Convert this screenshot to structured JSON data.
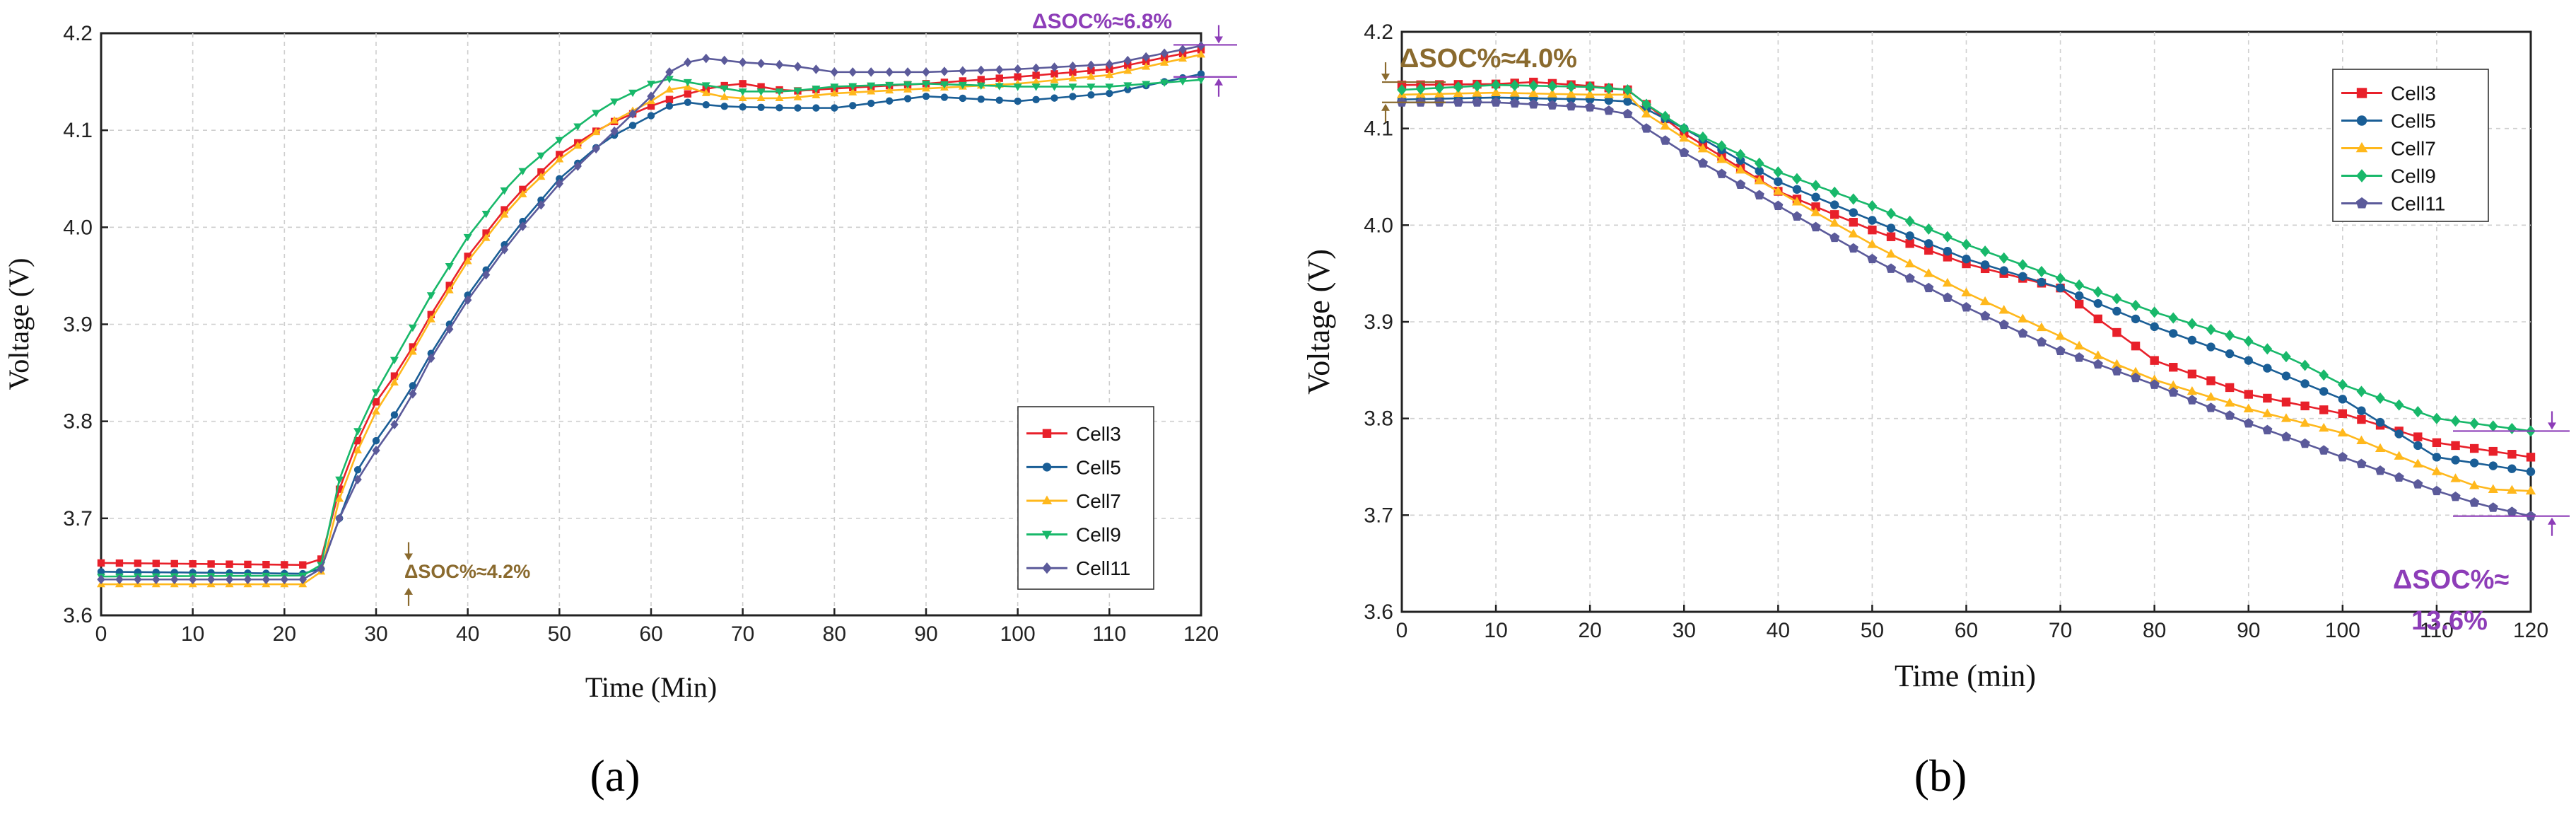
{
  "chart_data": [
    {
      "type": "line",
      "panel_label": "(a)",
      "xlabel": "Time  (Min)",
      "ylabel": "Voltage  (V)",
      "xlim": [
        0,
        120
      ],
      "ylim": [
        3.6,
        4.2
      ],
      "xticks": [
        0,
        10,
        20,
        30,
        40,
        50,
        60,
        70,
        80,
        90,
        100,
        110,
        120
      ],
      "yticks": [
        3.6,
        3.7,
        3.8,
        3.9,
        4.0,
        4.1,
        4.2
      ],
      "grid": true,
      "legend_position": "right-bottom",
      "annotations": [
        {
          "text": "ΔSOC%≈4.2%",
          "color": "#8a6a2e",
          "x": 33,
          "y_low": 3.63,
          "y_high": 3.655
        },
        {
          "text": "ΔSOC%≈6.8%",
          "color": "#8d3db8",
          "x": 120,
          "y_low": 4.155,
          "y_high": 4.188
        }
      ],
      "series": [
        {
          "name": "Cell3",
          "color": "#e8202a",
          "marker": "square",
          "points": [
            [
              0,
              3.654
            ],
            [
              22,
              3.652
            ],
            [
              24,
              3.658
            ],
            [
              26,
              3.73
            ],
            [
              28,
              3.78
            ],
            [
              30,
              3.82
            ],
            [
              33,
              3.86
            ],
            [
              36,
              3.91
            ],
            [
              40,
              3.97
            ],
            [
              45,
              4.03
            ],
            [
              50,
              4.075
            ],
            [
              55,
              4.105
            ],
            [
              60,
              4.125
            ],
            [
              63,
              4.135
            ],
            [
              67,
              4.145
            ],
            [
              70,
              4.148
            ],
            [
              75,
              4.14
            ],
            [
              80,
              4.143
            ],
            [
              90,
              4.148
            ],
            [
              100,
              4.155
            ],
            [
              110,
              4.163
            ],
            [
              120,
              4.183
            ]
          ]
        },
        {
          "name": "Cell5",
          "color": "#1a5e96",
          "marker": "circle",
          "points": [
            [
              0,
              3.645
            ],
            [
              22,
              3.643
            ],
            [
              24,
              3.648
            ],
            [
              26,
              3.7
            ],
            [
              28,
              3.75
            ],
            [
              30,
              3.78
            ],
            [
              33,
              3.82
            ],
            [
              36,
              3.87
            ],
            [
              40,
              3.93
            ],
            [
              45,
              3.995
            ],
            [
              50,
              4.05
            ],
            [
              55,
              4.09
            ],
            [
              60,
              4.115
            ],
            [
              63,
              4.13
            ],
            [
              67,
              4.125
            ],
            [
              70,
              4.124
            ],
            [
              75,
              4.123
            ],
            [
              80,
              4.123
            ],
            [
              90,
              4.135
            ],
            [
              100,
              4.13
            ],
            [
              110,
              4.138
            ],
            [
              120,
              4.158
            ]
          ]
        },
        {
          "name": "Cell7",
          "color": "#ffb81c",
          "marker": "triangle-up",
          "points": [
            [
              0,
              3.632
            ],
            [
              22,
              3.632
            ],
            [
              24,
              3.645
            ],
            [
              26,
              3.72
            ],
            [
              28,
              3.77
            ],
            [
              30,
              3.81
            ],
            [
              33,
              3.855
            ],
            [
              36,
              3.905
            ],
            [
              40,
              3.965
            ],
            [
              45,
              4.025
            ],
            [
              50,
              4.07
            ],
            [
              55,
              4.105
            ],
            [
              60,
              4.13
            ],
            [
              63,
              4.148
            ],
            [
              67,
              4.135
            ],
            [
              70,
              4.133
            ],
            [
              75,
              4.133
            ],
            [
              80,
              4.138
            ],
            [
              90,
              4.143
            ],
            [
              100,
              4.148
            ],
            [
              110,
              4.157
            ],
            [
              120,
              4.178
            ]
          ]
        },
        {
          "name": "Cell9",
          "color": "#18b86a",
          "marker": "triangle-down",
          "points": [
            [
              0,
              3.64
            ],
            [
              22,
              3.641
            ],
            [
              24,
              3.652
            ],
            [
              26,
              3.74
            ],
            [
              28,
              3.79
            ],
            [
              30,
              3.83
            ],
            [
              33,
              3.88
            ],
            [
              36,
              3.93
            ],
            [
              40,
              3.99
            ],
            [
              45,
              4.05
            ],
            [
              50,
              4.09
            ],
            [
              55,
              4.125
            ],
            [
              60,
              4.148
            ],
            [
              62,
              4.153
            ],
            [
              65,
              4.148
            ],
            [
              70,
              4.14
            ],
            [
              75,
              4.14
            ],
            [
              80,
              4.145
            ],
            [
              90,
              4.148
            ],
            [
              100,
              4.145
            ],
            [
              110,
              4.145
            ],
            [
              120,
              4.152
            ]
          ]
        },
        {
          "name": "Cell11",
          "color": "#5b5a9a",
          "marker": "diamond",
          "points": [
            [
              0,
              3.637
            ],
            [
              22,
              3.637
            ],
            [
              24,
              3.648
            ],
            [
              26,
              3.7
            ],
            [
              28,
              3.74
            ],
            [
              30,
              3.77
            ],
            [
              33,
              3.81
            ],
            [
              36,
              3.865
            ],
            [
              40,
              3.925
            ],
            [
              45,
              3.99
            ],
            [
              50,
              4.045
            ],
            [
              55,
              4.09
            ],
            [
              60,
              4.135
            ],
            [
              62,
              4.16
            ],
            [
              65,
              4.175
            ],
            [
              70,
              4.17
            ],
            [
              75,
              4.167
            ],
            [
              80,
              4.16
            ],
            [
              90,
              4.16
            ],
            [
              100,
              4.163
            ],
            [
              110,
              4.168
            ],
            [
              120,
              4.187
            ]
          ]
        }
      ]
    },
    {
      "type": "line",
      "panel_label": "(b)",
      "xlabel": "Time (min)",
      "ylabel": "Voltage (V)",
      "xlim": [
        0,
        120
      ],
      "ylim": [
        3.6,
        4.2
      ],
      "xticks": [
        0,
        10,
        20,
        30,
        40,
        50,
        60,
        70,
        80,
        90,
        100,
        110,
        120
      ],
      "yticks": [
        3.6,
        3.7,
        3.8,
        3.9,
        4.0,
        4.1,
        4.2
      ],
      "grid": true,
      "legend_position": "top-right",
      "annotations": [
        {
          "text": "ΔSOC%≈4.0%",
          "color": "#8a6a2e",
          "x": 0,
          "y_low": 4.127,
          "y_high": 4.148
        },
        {
          "text": "ΔSOC%≈",
          "text2": "13.6%",
          "color": "#8d3db8",
          "x": 120,
          "y_low": 3.699,
          "y_high": 3.787
        }
      ],
      "series": [
        {
          "name": "Cell3",
          "color": "#e8202a",
          "marker": "square",
          "points": [
            [
              0,
              4.145
            ],
            [
              10,
              4.146
            ],
            [
              14,
              4.148
            ],
            [
              20,
              4.144
            ],
            [
              24,
              4.14
            ],
            [
              26,
              4.125
            ],
            [
              30,
              4.095
            ],
            [
              40,
              4.035
            ],
            [
              50,
              3.995
            ],
            [
              60,
              3.96
            ],
            [
              70,
              3.935
            ],
            [
              73,
              3.91
            ],
            [
              78,
              3.875
            ],
            [
              80,
              3.86
            ],
            [
              90,
              3.825
            ],
            [
              100,
              3.805
            ],
            [
              110,
              3.775
            ],
            [
              120,
              3.76
            ]
          ]
        },
        {
          "name": "Cell5",
          "color": "#1a5e96",
          "marker": "circle",
          "points": [
            [
              0,
              4.13
            ],
            [
              10,
              4.132
            ],
            [
              20,
              4.13
            ],
            [
              24,
              4.128
            ],
            [
              26,
              4.12
            ],
            [
              30,
              4.1
            ],
            [
              40,
              4.045
            ],
            [
              50,
              4.005
            ],
            [
              60,
              3.965
            ],
            [
              70,
              3.935
            ],
            [
              80,
              3.895
            ],
            [
              90,
              3.86
            ],
            [
              100,
              3.82
            ],
            [
              110,
              3.76
            ],
            [
              120,
              3.745
            ]
          ]
        },
        {
          "name": "Cell7",
          "color": "#ffb81c",
          "marker": "triangle-up",
          "points": [
            [
              0,
              4.135
            ],
            [
              10,
              4.137
            ],
            [
              20,
              4.135
            ],
            [
              24,
              4.135
            ],
            [
              26,
              4.115
            ],
            [
              30,
              4.09
            ],
            [
              40,
              4.035
            ],
            [
              50,
              3.98
            ],
            [
              60,
              3.93
            ],
            [
              70,
              3.885
            ],
            [
              75,
              3.86
            ],
            [
              80,
              3.84
            ],
            [
              90,
              3.81
            ],
            [
              100,
              3.785
            ],
            [
              110,
              3.745
            ],
            [
              115,
              3.727
            ],
            [
              120,
              3.725
            ]
          ]
        },
        {
          "name": "Cell9",
          "color": "#18b86a",
          "marker": "diamond",
          "points": [
            [
              0,
              4.14
            ],
            [
              10,
              4.145
            ],
            [
              20,
              4.143
            ],
            [
              24,
              4.14
            ],
            [
              26,
              4.125
            ],
            [
              30,
              4.1
            ],
            [
              40,
              4.055
            ],
            [
              50,
              4.02
            ],
            [
              60,
              3.98
            ],
            [
              70,
              3.945
            ],
            [
              80,
              3.91
            ],
            [
              90,
              3.88
            ],
            [
              95,
              3.86
            ],
            [
              100,
              3.835
            ],
            [
              110,
              3.8
            ],
            [
              120,
              3.787
            ]
          ]
        },
        {
          "name": "Cell11",
          "color": "#5b5a9a",
          "marker": "pentagon",
          "points": [
            [
              0,
              4.127
            ],
            [
              10,
              4.127
            ],
            [
              20,
              4.122
            ],
            [
              24,
              4.115
            ],
            [
              26,
              4.1
            ],
            [
              30,
              4.075
            ],
            [
              40,
              4.02
            ],
            [
              50,
              3.965
            ],
            [
              60,
              3.915
            ],
            [
              70,
              3.87
            ],
            [
              80,
              3.835
            ],
            [
              90,
              3.795
            ],
            [
              100,
              3.76
            ],
            [
              110,
              3.725
            ],
            [
              115,
              3.71
            ],
            [
              120,
              3.699
            ]
          ]
        }
      ]
    }
  ]
}
